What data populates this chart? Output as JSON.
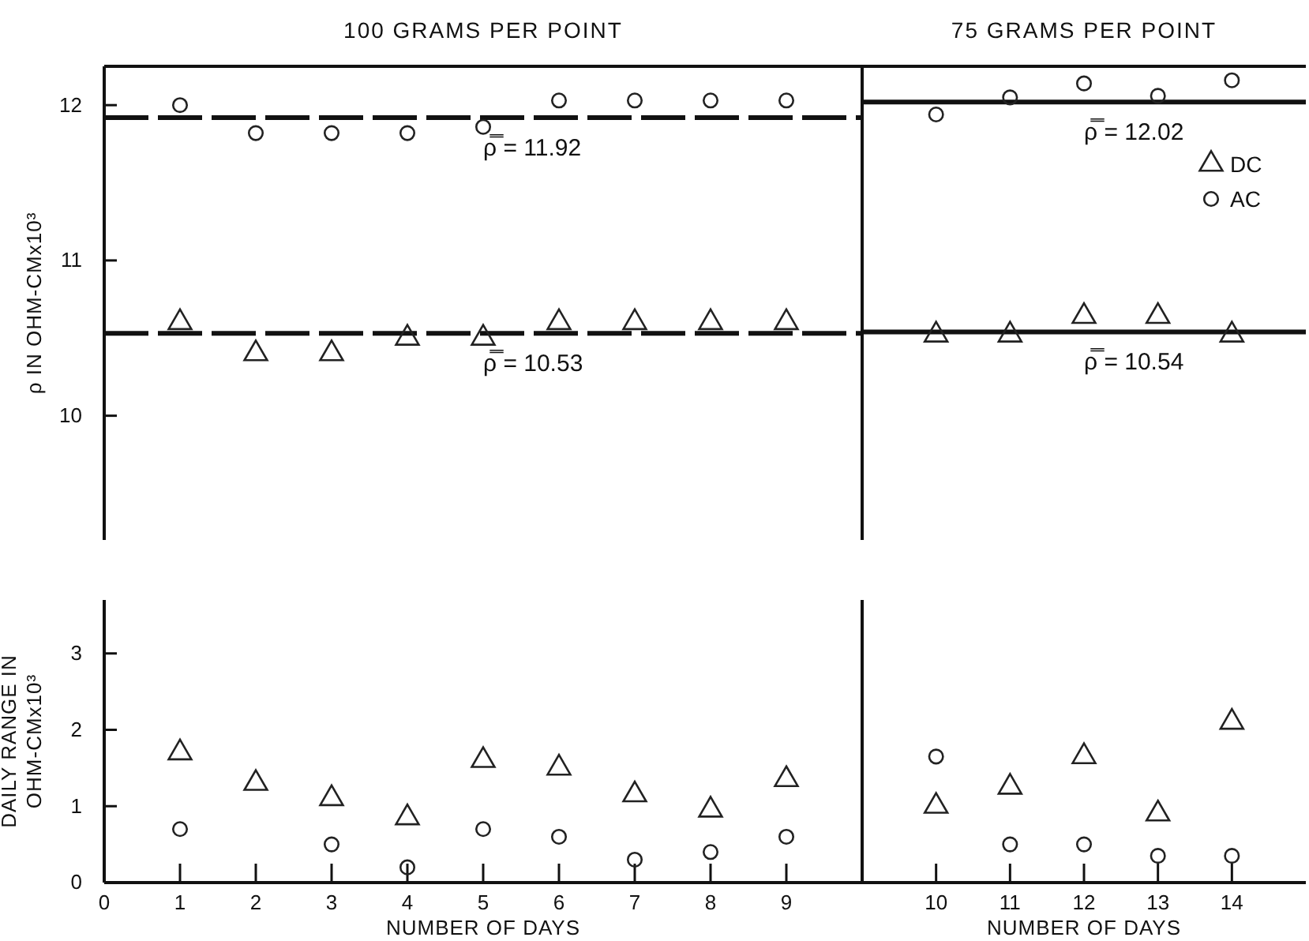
{
  "chart_data": [
    {
      "type": "scatter",
      "title": "100 GRAMS PER POINT",
      "ylabel": "ρ IN OHM-CMx10³",
      "x": [
        1,
        2,
        3,
        4,
        5,
        6,
        7,
        8,
        9
      ],
      "xlim": [
        0,
        10
      ],
      "ylim": [
        9.2,
        12.25
      ],
      "yticks": [
        10,
        11,
        12
      ],
      "tick_labels": "y",
      "legend": false,
      "grid": false,
      "series": [
        {
          "color": "#222222",
          "marker": "triangle",
          "values": [
            10.6,
            10.4,
            10.4,
            10.5,
            10.5,
            10.6,
            10.6,
            10.6,
            10.6
          ]
        },
        {
          "color": "#222222",
          "marker": "circle",
          "values": [
            12.0,
            11.82,
            11.82,
            11.82,
            11.86,
            12.03,
            12.03,
            12.03,
            12.03
          ]
        }
      ],
      "ref_lines": [
        {
          "axis": "y",
          "value": 11.92,
          "label": "ρ̿ = 11.92",
          "line_style": "dashed",
          "color": "#111111"
        },
        {
          "axis": "y",
          "value": 10.53,
          "label": "ρ̿ = 10.53",
          "line_style": "dashed",
          "color": "#111111"
        }
      ]
    },
    {
      "type": "scatter",
      "title": "75 GRAMS PER POINT",
      "x": [
        10,
        11,
        12,
        13,
        14
      ],
      "xlim": [
        9,
        15
      ],
      "ylim": [
        9.2,
        12.25
      ],
      "tick_labels": false,
      "legend": "top right",
      "grid": false,
      "series": [
        {
          "name": "DC",
          "color": "#222222",
          "marker": "triangle",
          "values": [
            10.52,
            10.52,
            10.64,
            10.64,
            10.52
          ]
        },
        {
          "name": "AC",
          "color": "#222222",
          "marker": "circle",
          "values": [
            11.94,
            12.05,
            12.14,
            12.06,
            12.16
          ]
        }
      ],
      "ref_lines": [
        {
          "axis": "y",
          "value": 12.02,
          "label": "ρ̿ = 12.02",
          "line_style": "solid",
          "color": "#111111"
        },
        {
          "axis": "y",
          "value": 10.54,
          "label": "ρ̿ = 10.54",
          "line_style": "solid",
          "color": "#111111"
        }
      ]
    },
    {
      "type": "scatter",
      "xlabel": "NUMBER OF DAYS",
      "ylabel": "DAILY RANGE IN OHM-CMx10³",
      "x": [
        1,
        2,
        3,
        4,
        5,
        6,
        7,
        8,
        9
      ],
      "xlim": [
        0,
        10
      ],
      "xticks": [
        0,
        1,
        2,
        3,
        4,
        5,
        6,
        7,
        8,
        9
      ],
      "ylim": [
        0,
        3.7
      ],
      "yticks": [
        0,
        1,
        2,
        3
      ],
      "legend": false,
      "grid": false,
      "series": [
        {
          "color": "#222222",
          "marker": "triangle",
          "values": [
            1.7,
            1.3,
            1.1,
            0.85,
            1.6,
            1.5,
            1.15,
            0.95,
            1.35
          ]
        },
        {
          "color": "#222222",
          "marker": "circle",
          "values": [
            0.7,
            null,
            0.5,
            0.2,
            0.7,
            0.6,
            0.3,
            0.4,
            0.6
          ]
        }
      ]
    },
    {
      "type": "scatter",
      "xlabel": "NUMBER OF DAYS",
      "x": [
        10,
        11,
        12,
        13,
        14
      ],
      "xlim": [
        9,
        15
      ],
      "xticks": [
        10,
        11,
        12,
        13,
        14
      ],
      "ylim": [
        0,
        3.7
      ],
      "tick_labels": "x",
      "legend": false,
      "grid": false,
      "series": [
        {
          "color": "#222222",
          "marker": "triangle",
          "values": [
            1.0,
            1.25,
            1.65,
            0.9,
            2.1
          ]
        },
        {
          "color": "#222222",
          "marker": "circle",
          "values": [
            1.65,
            0.5,
            0.5,
            0.35,
            0.35
          ]
        }
      ]
    }
  ]
}
